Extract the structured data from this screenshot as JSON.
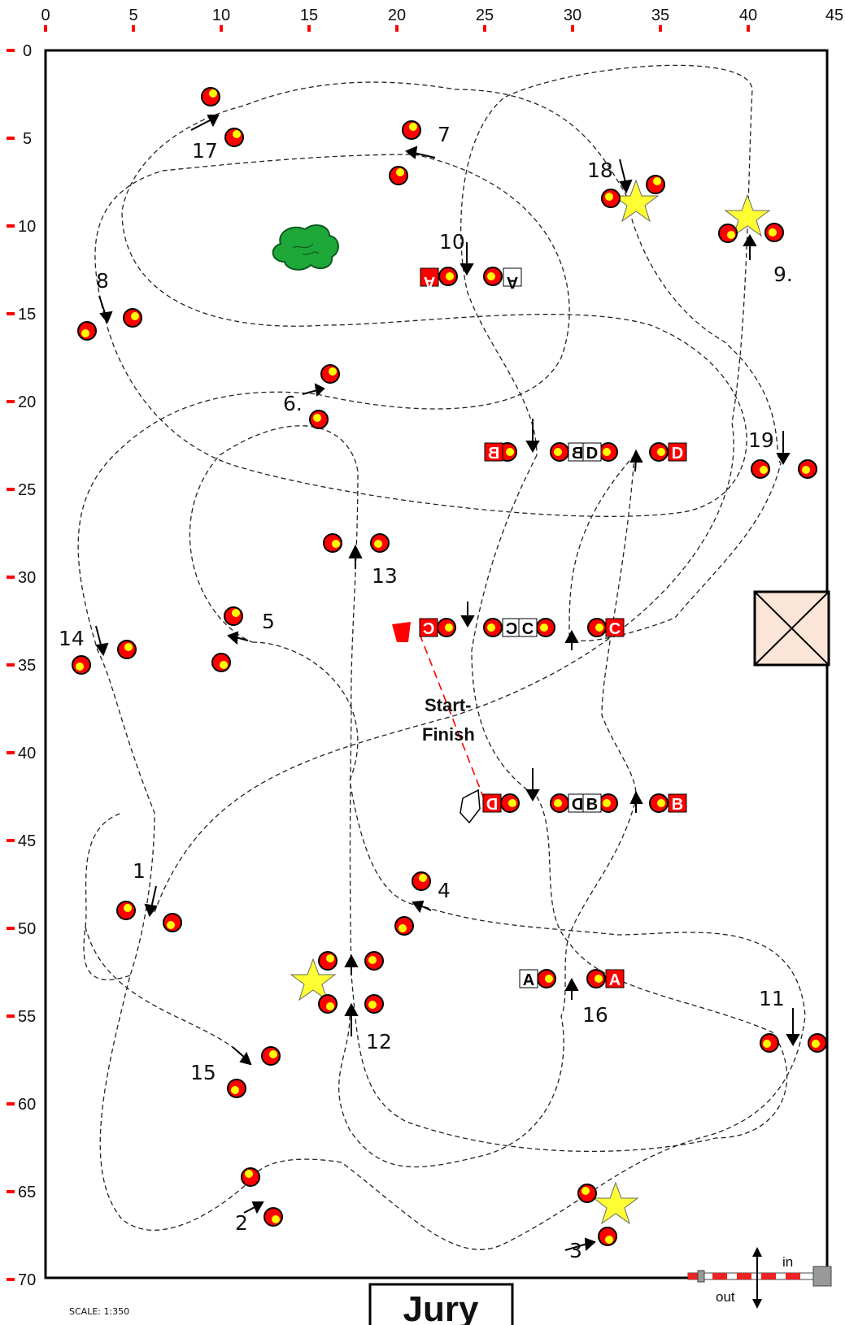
{
  "x_axis": [
    "0",
    "5",
    "10",
    "15",
    "20",
    "25",
    "30",
    "35",
    "40",
    "45"
  ],
  "y_axis": [
    "0",
    "5",
    "10",
    "15",
    "20",
    "25",
    "30",
    "35",
    "40",
    "45",
    "50",
    "55",
    "60",
    "65",
    "70"
  ],
  "obstacle_numbers": [
    {
      "id": "1",
      "label": "1"
    },
    {
      "id": "2",
      "label": "2"
    },
    {
      "id": "3",
      "label": "3"
    },
    {
      "id": "4",
      "label": "4"
    },
    {
      "id": "5",
      "label": "5"
    },
    {
      "id": "6",
      "label": "6."
    },
    {
      "id": "7",
      "label": "7"
    },
    {
      "id": "8",
      "label": "8"
    },
    {
      "id": "9",
      "label": "9."
    },
    {
      "id": "10",
      "label": "10"
    },
    {
      "id": "11",
      "label": "11"
    },
    {
      "id": "12",
      "label": "12"
    },
    {
      "id": "13",
      "label": "13"
    },
    {
      "id": "14",
      "label": "14"
    },
    {
      "id": "15",
      "label": "15"
    },
    {
      "id": "16",
      "label": "16"
    },
    {
      "id": "17",
      "label": "17"
    },
    {
      "id": "18",
      "label": "18"
    },
    {
      "id": "19",
      "label": "19"
    }
  ],
  "combination_letters": {
    "a": "A",
    "b": "B",
    "c": "C",
    "d": "D"
  },
  "start_finish": [
    "Start-",
    "Finish"
  ],
  "scale": "SCALE:  1:350",
  "jury": "Jury",
  "in_label": "in",
  "out_label": "out",
  "colors": {
    "fence": "#ff0000",
    "fence_dot": "#ffff00",
    "star": "#ffff33",
    "tree": "#1fa83a",
    "tick": "#ff0000",
    "box": "#fbe5d6",
    "start_flag": "#ff0000"
  }
}
